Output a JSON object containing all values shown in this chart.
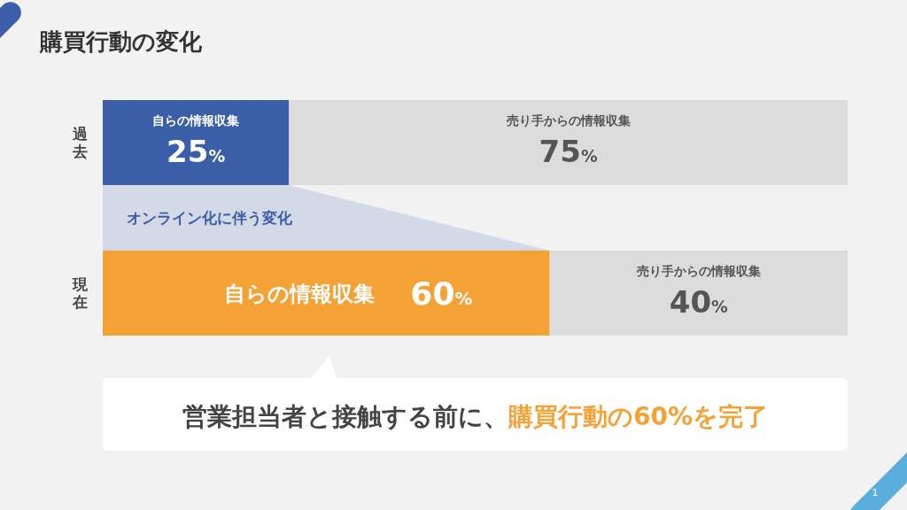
{
  "chart_data": {
    "type": "bar",
    "title": "購買行動の変化",
    "orientation": "horizontal",
    "stacked": true,
    "categories": [
      "過去",
      "現在"
    ],
    "xlim": [
      0,
      100
    ],
    "tick_labels": "y",
    "series": [
      {
        "name": "自らの情報収集",
        "colors": [
          "#3a5fa8",
          "#f4a236"
        ],
        "values": [
          25,
          60
        ],
        "value_labels": [
          "25%",
          "60%"
        ]
      },
      {
        "name": "売り手からの情報収集",
        "color": "#dcdcdc",
        "values": [
          75,
          40
        ],
        "value_labels": [
          "75%",
          "40%"
        ]
      }
    ],
    "annotations": [
      "オンライン化に伴う変化",
      "営業担当者と接触する前に、",
      "購買行動の60%を完了",
      "1"
    ]
  }
}
